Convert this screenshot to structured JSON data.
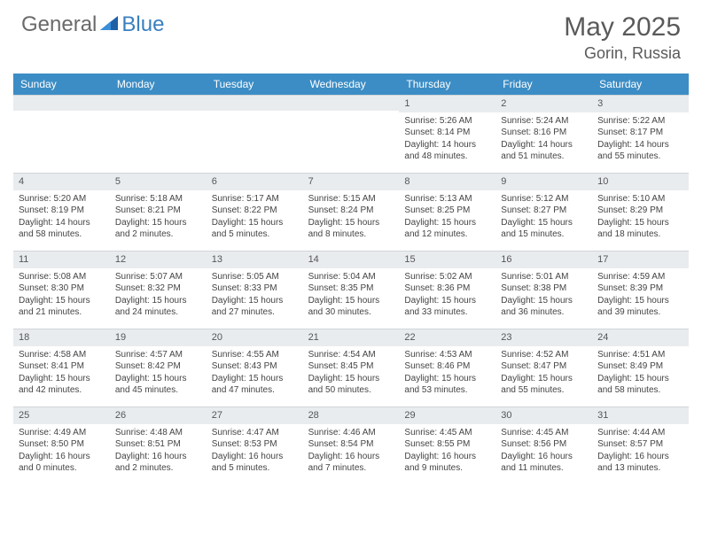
{
  "brand": {
    "part1": "General",
    "part2": "Blue"
  },
  "title": {
    "month": "May 2025",
    "location": "Gorin, Russia"
  },
  "colors": {
    "header_bg": "#3c8dc5",
    "header_fg": "#ffffff",
    "daynum_bg": "#e9ecef",
    "text": "#444444",
    "brand_gray": "#6a6a6a",
    "brand_blue": "#3a7fbf"
  },
  "day_headers": [
    "Sunday",
    "Monday",
    "Tuesday",
    "Wednesday",
    "Thursday",
    "Friday",
    "Saturday"
  ],
  "weeks": [
    [
      {
        "n": "",
        "sr": "",
        "ss": "",
        "dl": ""
      },
      {
        "n": "",
        "sr": "",
        "ss": "",
        "dl": ""
      },
      {
        "n": "",
        "sr": "",
        "ss": "",
        "dl": ""
      },
      {
        "n": "",
        "sr": "",
        "ss": "",
        "dl": ""
      },
      {
        "n": "1",
        "sr": "Sunrise: 5:26 AM",
        "ss": "Sunset: 8:14 PM",
        "dl": "Daylight: 14 hours and 48 minutes."
      },
      {
        "n": "2",
        "sr": "Sunrise: 5:24 AM",
        "ss": "Sunset: 8:16 PM",
        "dl": "Daylight: 14 hours and 51 minutes."
      },
      {
        "n": "3",
        "sr": "Sunrise: 5:22 AM",
        "ss": "Sunset: 8:17 PM",
        "dl": "Daylight: 14 hours and 55 minutes."
      }
    ],
    [
      {
        "n": "4",
        "sr": "Sunrise: 5:20 AM",
        "ss": "Sunset: 8:19 PM",
        "dl": "Daylight: 14 hours and 58 minutes."
      },
      {
        "n": "5",
        "sr": "Sunrise: 5:18 AM",
        "ss": "Sunset: 8:21 PM",
        "dl": "Daylight: 15 hours and 2 minutes."
      },
      {
        "n": "6",
        "sr": "Sunrise: 5:17 AM",
        "ss": "Sunset: 8:22 PM",
        "dl": "Daylight: 15 hours and 5 minutes."
      },
      {
        "n": "7",
        "sr": "Sunrise: 5:15 AM",
        "ss": "Sunset: 8:24 PM",
        "dl": "Daylight: 15 hours and 8 minutes."
      },
      {
        "n": "8",
        "sr": "Sunrise: 5:13 AM",
        "ss": "Sunset: 8:25 PM",
        "dl": "Daylight: 15 hours and 12 minutes."
      },
      {
        "n": "9",
        "sr": "Sunrise: 5:12 AM",
        "ss": "Sunset: 8:27 PM",
        "dl": "Daylight: 15 hours and 15 minutes."
      },
      {
        "n": "10",
        "sr": "Sunrise: 5:10 AM",
        "ss": "Sunset: 8:29 PM",
        "dl": "Daylight: 15 hours and 18 minutes."
      }
    ],
    [
      {
        "n": "11",
        "sr": "Sunrise: 5:08 AM",
        "ss": "Sunset: 8:30 PM",
        "dl": "Daylight: 15 hours and 21 minutes."
      },
      {
        "n": "12",
        "sr": "Sunrise: 5:07 AM",
        "ss": "Sunset: 8:32 PM",
        "dl": "Daylight: 15 hours and 24 minutes."
      },
      {
        "n": "13",
        "sr": "Sunrise: 5:05 AM",
        "ss": "Sunset: 8:33 PM",
        "dl": "Daylight: 15 hours and 27 minutes."
      },
      {
        "n": "14",
        "sr": "Sunrise: 5:04 AM",
        "ss": "Sunset: 8:35 PM",
        "dl": "Daylight: 15 hours and 30 minutes."
      },
      {
        "n": "15",
        "sr": "Sunrise: 5:02 AM",
        "ss": "Sunset: 8:36 PM",
        "dl": "Daylight: 15 hours and 33 minutes."
      },
      {
        "n": "16",
        "sr": "Sunrise: 5:01 AM",
        "ss": "Sunset: 8:38 PM",
        "dl": "Daylight: 15 hours and 36 minutes."
      },
      {
        "n": "17",
        "sr": "Sunrise: 4:59 AM",
        "ss": "Sunset: 8:39 PM",
        "dl": "Daylight: 15 hours and 39 minutes."
      }
    ],
    [
      {
        "n": "18",
        "sr": "Sunrise: 4:58 AM",
        "ss": "Sunset: 8:41 PM",
        "dl": "Daylight: 15 hours and 42 minutes."
      },
      {
        "n": "19",
        "sr": "Sunrise: 4:57 AM",
        "ss": "Sunset: 8:42 PM",
        "dl": "Daylight: 15 hours and 45 minutes."
      },
      {
        "n": "20",
        "sr": "Sunrise: 4:55 AM",
        "ss": "Sunset: 8:43 PM",
        "dl": "Daylight: 15 hours and 47 minutes."
      },
      {
        "n": "21",
        "sr": "Sunrise: 4:54 AM",
        "ss": "Sunset: 8:45 PM",
        "dl": "Daylight: 15 hours and 50 minutes."
      },
      {
        "n": "22",
        "sr": "Sunrise: 4:53 AM",
        "ss": "Sunset: 8:46 PM",
        "dl": "Daylight: 15 hours and 53 minutes."
      },
      {
        "n": "23",
        "sr": "Sunrise: 4:52 AM",
        "ss": "Sunset: 8:47 PM",
        "dl": "Daylight: 15 hours and 55 minutes."
      },
      {
        "n": "24",
        "sr": "Sunrise: 4:51 AM",
        "ss": "Sunset: 8:49 PM",
        "dl": "Daylight: 15 hours and 58 minutes."
      }
    ],
    [
      {
        "n": "25",
        "sr": "Sunrise: 4:49 AM",
        "ss": "Sunset: 8:50 PM",
        "dl": "Daylight: 16 hours and 0 minutes."
      },
      {
        "n": "26",
        "sr": "Sunrise: 4:48 AM",
        "ss": "Sunset: 8:51 PM",
        "dl": "Daylight: 16 hours and 2 minutes."
      },
      {
        "n": "27",
        "sr": "Sunrise: 4:47 AM",
        "ss": "Sunset: 8:53 PM",
        "dl": "Daylight: 16 hours and 5 minutes."
      },
      {
        "n": "28",
        "sr": "Sunrise: 4:46 AM",
        "ss": "Sunset: 8:54 PM",
        "dl": "Daylight: 16 hours and 7 minutes."
      },
      {
        "n": "29",
        "sr": "Sunrise: 4:45 AM",
        "ss": "Sunset: 8:55 PM",
        "dl": "Daylight: 16 hours and 9 minutes."
      },
      {
        "n": "30",
        "sr": "Sunrise: 4:45 AM",
        "ss": "Sunset: 8:56 PM",
        "dl": "Daylight: 16 hours and 11 minutes."
      },
      {
        "n": "31",
        "sr": "Sunrise: 4:44 AM",
        "ss": "Sunset: 8:57 PM",
        "dl": "Daylight: 16 hours and 13 minutes."
      }
    ]
  ]
}
